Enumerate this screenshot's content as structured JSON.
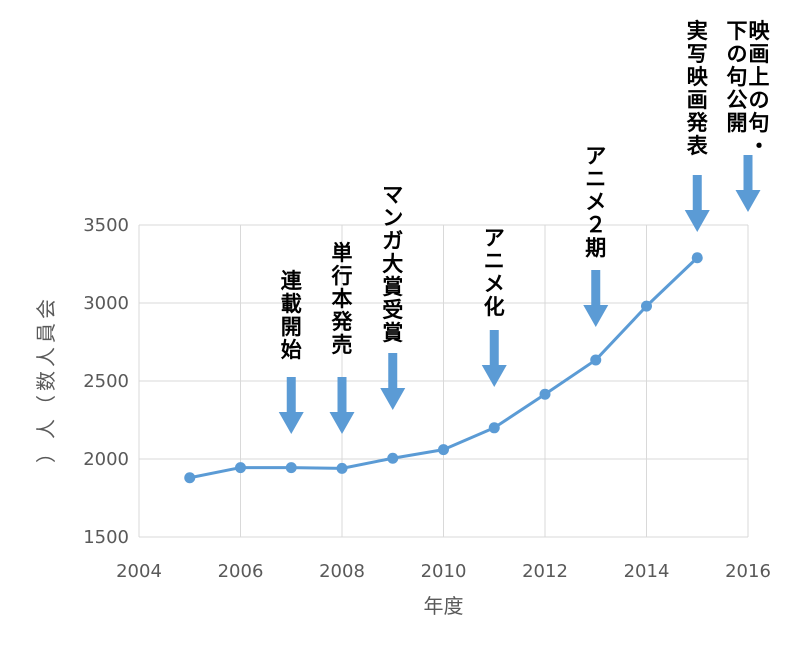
{
  "chart_data": {
    "type": "line",
    "title": "",
    "xlabel": "年度",
    "ylabel": "会員人数（人）",
    "xlim": [
      2004,
      2016
    ],
    "ylim": [
      1500,
      3500
    ],
    "x_ticks": [
      2004,
      2006,
      2008,
      2010,
      2012,
      2014,
      2016
    ],
    "y_ticks": [
      1500,
      2000,
      2500,
      3000,
      3500
    ],
    "grid": true,
    "legend": "none",
    "series": [
      {
        "color": "#5b9bd5",
        "x": [
          2005,
          2006,
          2007,
          2008,
          2009,
          2010,
          2011,
          2012,
          2013,
          2014,
          2015
        ],
        "values": [
          1880,
          1945,
          1945,
          1940,
          2005,
          2060,
          2200,
          2415,
          2635,
          2980,
          3290
        ]
      }
    ],
    "annotations": [
      {
        "x": 2007,
        "lines": [
          "連載開始"
        ]
      },
      {
        "x": 2008,
        "lines": [
          "単行本発売"
        ]
      },
      {
        "x": 2009,
        "lines": [
          "マンガ大賞受賞"
        ]
      },
      {
        "x": 2011,
        "lines": [
          "アニメ化"
        ]
      },
      {
        "x": 2013,
        "lines": [
          "アニメ２期"
        ]
      },
      {
        "x": 2015,
        "lines": [
          "実写映画発表"
        ]
      },
      {
        "x": 2016,
        "lines": [
          "映画上の句・",
          "下の句公開"
        ]
      }
    ]
  }
}
